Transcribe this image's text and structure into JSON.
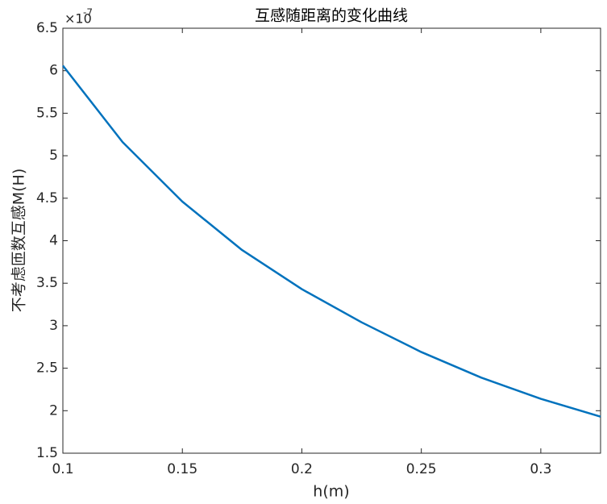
{
  "chart_data": {
    "type": "line",
    "title": "互感随距离的变化曲线",
    "x_label": "h(m)",
    "y_label": "不考虑匝数互感M(H)",
    "y_multiplier": "×10",
    "y_exponent": "-7",
    "x": [
      0.1,
      0.125,
      0.15,
      0.175,
      0.2,
      0.225,
      0.25,
      0.275,
      0.3,
      0.325
    ],
    "series": [
      {
        "name": "M",
        "color": "#0072bd",
        "values": [
          6.06,
          5.16,
          4.46,
          3.89,
          3.43,
          3.04,
          2.69,
          2.39,
          2.14,
          1.93
        ]
      }
    ],
    "xlim": [
      0.1,
      0.325
    ],
    "xticks": [
      0.1,
      0.15,
      0.2,
      0.25,
      0.3
    ],
    "ylim": [
      1.5,
      6.5
    ],
    "yticks": [
      1.5,
      2,
      2.5,
      3,
      3.5,
      4,
      4.5,
      5,
      5.5,
      6,
      6.5
    ],
    "grid": false
  }
}
